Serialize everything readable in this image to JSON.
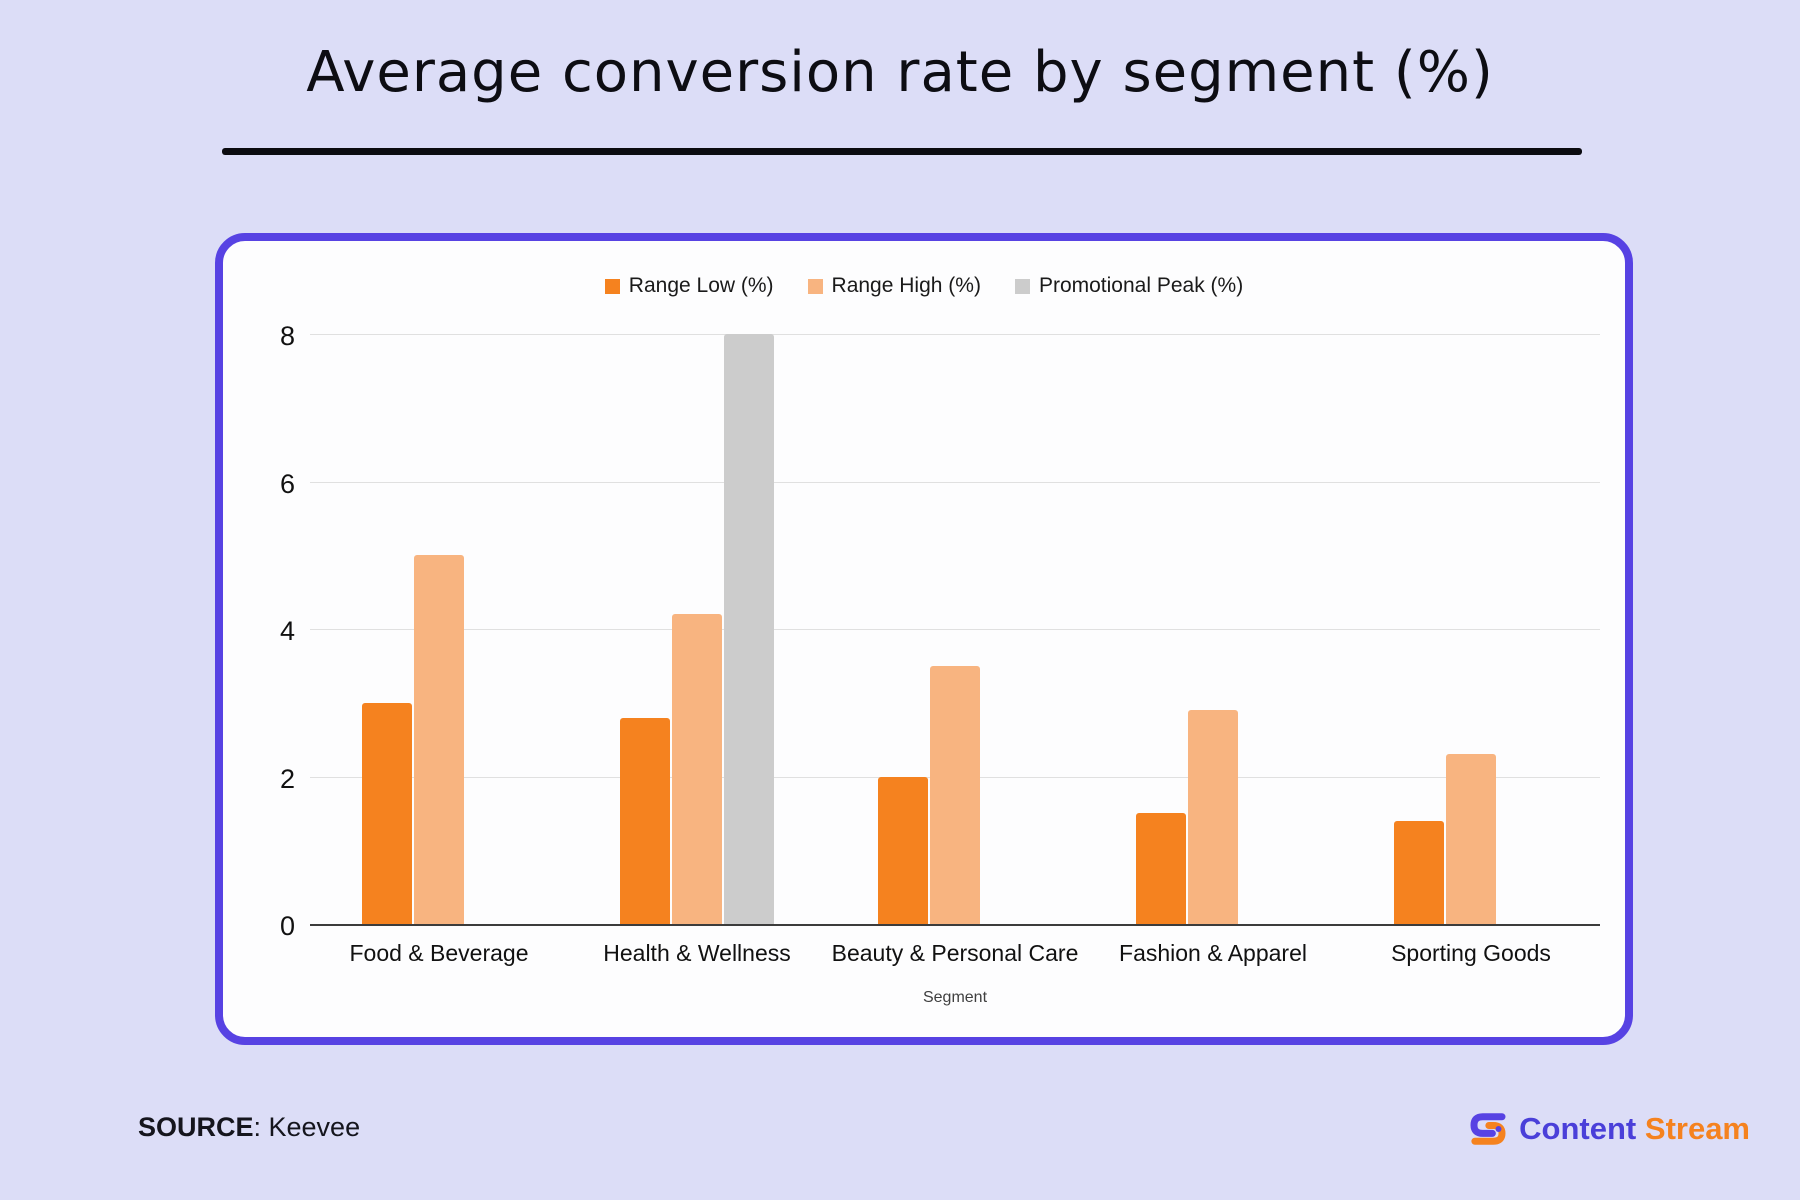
{
  "header": {
    "title": "Average conversion rate by segment (%)"
  },
  "chart_data": {
    "type": "bar",
    "title": "Average conversion rate by segment (%)",
    "xlabel": "Segment",
    "ylabel": "",
    "ylim": [
      0,
      8
    ],
    "yticks": [
      0,
      2,
      4,
      6,
      8
    ],
    "grid": true,
    "legend_position": "top",
    "categories": [
      "Food & Beverage",
      "Health & Wellness",
      "Beauty & Personal Care",
      "Fashion & Apparel",
      "Sporting Goods"
    ],
    "series": [
      {
        "name": "Range Low (%)",
        "color": "#f5821f",
        "values": [
          3.0,
          2.8,
          2.0,
          1.5,
          1.4
        ]
      },
      {
        "name": "Range High (%)",
        "color": "#f8b480",
        "values": [
          5.0,
          4.2,
          3.5,
          2.9,
          2.3
        ]
      },
      {
        "name": "Promotional Peak (%)",
        "color": "#cccccc",
        "values": [
          0,
          8.0,
          0,
          0,
          0
        ]
      }
    ]
  },
  "footer": {
    "source_label": "SOURCE",
    "source_value": ": Keevee",
    "brand_content": "Content",
    "brand_stream": "Stream"
  },
  "colors": {
    "page_background": "#dcddf7",
    "card_background": "#fdfdfe",
    "card_border": "#5742e3",
    "title_text": "#0d0d13",
    "gridline": "#e0e0e0",
    "axis_line": "#3c3c3c",
    "range_low": "#f5821f",
    "range_high": "#f8b480",
    "promotional_peak": "#cccccc",
    "brand_purple": "#4a3fd9",
    "brand_orange": "#f5821f"
  }
}
